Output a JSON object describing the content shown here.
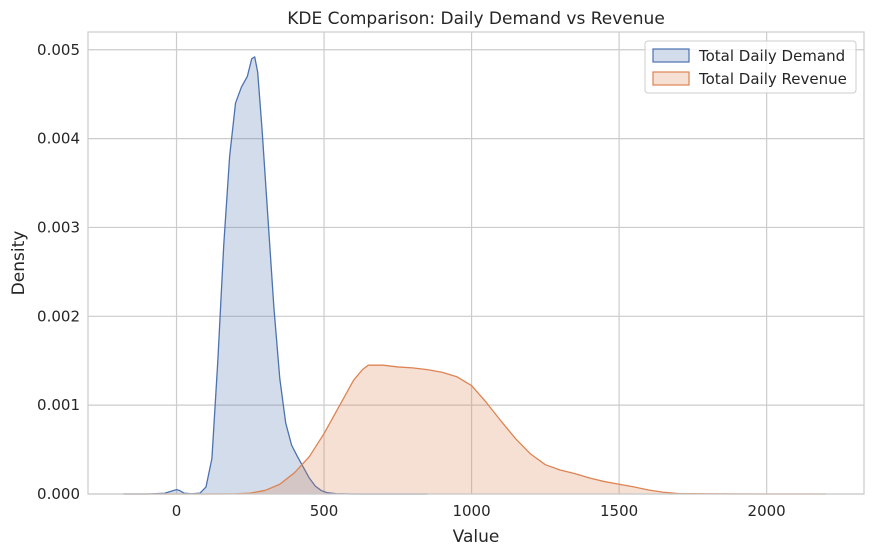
{
  "chart_data": {
    "type": "area",
    "title": "KDE Comparison: Daily Demand vs Revenue",
    "xlabel": "Value",
    "ylabel": "Density",
    "xlim": [
      -300,
      2330
    ],
    "ylim": [
      0,
      0.0052
    ],
    "x_ticks": [
      0,
      500,
      1000,
      1500,
      2000
    ],
    "y_ticks": [
      0.0,
      0.001,
      0.002,
      0.003,
      0.004,
      0.005
    ],
    "x_tick_labels": [
      "0",
      "500",
      "1000",
      "1500",
      "2000"
    ],
    "y_tick_labels": [
      "0.000",
      "0.001",
      "0.002",
      "0.003",
      "0.004",
      "0.005"
    ],
    "grid": true,
    "legend_position": "top-right",
    "series": [
      {
        "name": "Total Daily Demand",
        "color": "#4c72b0",
        "fill_opacity": 0.25,
        "x": [
          -180,
          -100,
          -40,
          -10,
          0,
          10,
          25,
          50,
          80,
          100,
          120,
          140,
          160,
          180,
          200,
          220,
          240,
          255,
          265,
          275,
          290,
          310,
          330,
          350,
          370,
          390,
          410,
          430,
          450,
          470,
          490,
          510,
          540,
          600,
          700,
          850
        ],
        "y": [
          0,
          0,
          8e-06,
          4e-05,
          5e-05,
          4e-05,
          1e-05,
          2e-06,
          1e-05,
          8e-05,
          0.0004,
          0.0015,
          0.0028,
          0.0038,
          0.0044,
          0.00458,
          0.0047,
          0.0049,
          0.00492,
          0.00475,
          0.0041,
          0.0031,
          0.0021,
          0.0013,
          0.0008,
          0.00055,
          0.00042,
          0.0003,
          0.00018,
          9e-05,
          4e-05,
          1.5e-05,
          4e-06,
          0,
          0,
          0
        ]
      },
      {
        "name": "Total Daily Revenue",
        "color": "#dd8452",
        "fill_opacity": 0.25,
        "x": [
          -180,
          100,
          200,
          250,
          300,
          350,
          400,
          450,
          500,
          550,
          600,
          630,
          650,
          700,
          750,
          800,
          850,
          900,
          950,
          1000,
          1050,
          1100,
          1150,
          1200,
          1250,
          1300,
          1350,
          1400,
          1450,
          1500,
          1550,
          1600,
          1650,
          1700,
          1800,
          2000,
          2200
        ],
        "y": [
          0,
          0,
          2e-06,
          1e-05,
          4e-05,
          0.00011,
          0.00024,
          0.00042,
          0.00068,
          0.00098,
          0.00128,
          0.0014,
          0.00145,
          0.00145,
          0.00143,
          0.00142,
          0.0014,
          0.00137,
          0.00132,
          0.00122,
          0.00103,
          0.00082,
          0.00062,
          0.00045,
          0.00033,
          0.00027,
          0.00023,
          0.00018,
          0.00014,
          0.00011,
          8e-05,
          4.5e-05,
          2e-05,
          6e-06,
          2e-06,
          0,
          0
        ]
      }
    ]
  }
}
